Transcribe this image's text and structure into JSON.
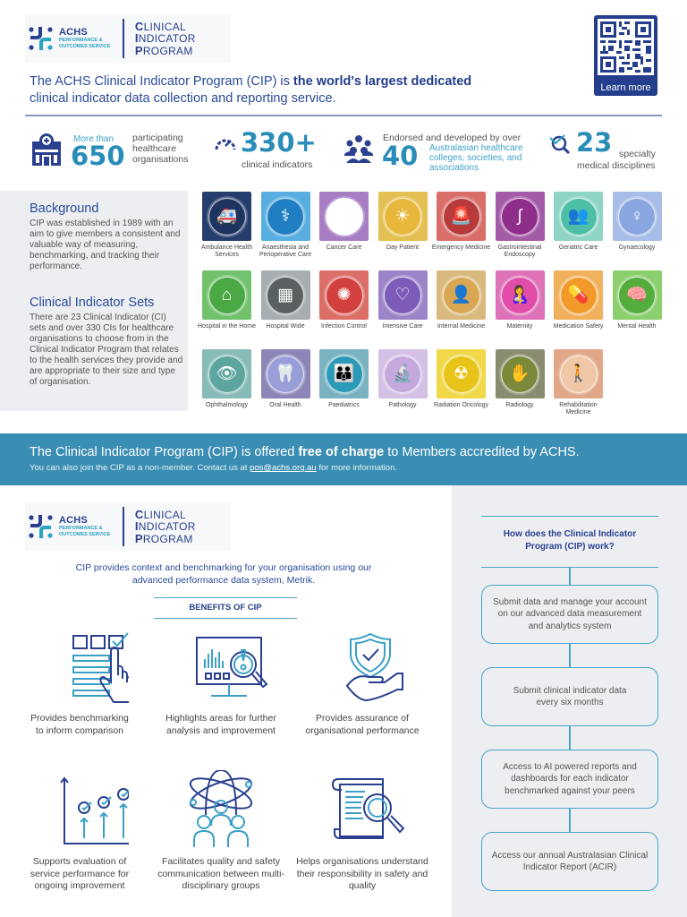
{
  "header": {
    "logo": {
      "org_name": "ACHS",
      "org_sub_line1": "PERFORMANCE &",
      "org_sub_line2": "OUTCOMES SERVICE",
      "program_line1_initial": "C",
      "program_line1_rest": "LINICAL",
      "program_line2_initial": "I",
      "program_line2_rest": "NDICATOR",
      "program_line3_initial": "P",
      "program_line3_rest": "ROGRAM"
    },
    "intro_part1": "The ACHS Clinical Indicator Program (CIP) is ",
    "intro_bold": "the world's largest dedicated",
    "intro_part2": "clinical indicator data collection and reporting service.",
    "qr_label": "Learn more"
  },
  "stats": [
    {
      "prefix": "More than",
      "number": "650",
      "text": "participating healthcare organisations",
      "icon": "hospital-icon"
    },
    {
      "number": "330+",
      "text": "clinical indicators",
      "icon": "gauge-icon"
    },
    {
      "prefix": "Endorsed and developed by over",
      "number": "40",
      "text": "Australasian healthcare colleges, societies, and associations",
      "icon": "people-group-icon"
    },
    {
      "number": "23",
      "text_line1": "specialty",
      "text_line2": "medical disciplines",
      "icon": "magnifier-check-icon"
    }
  ],
  "background": {
    "heading": "Background",
    "body": "CIP was established in 1989 with an aim to give members a consistent and valuable way of measuring, benchmarking, and tracking their performance.",
    "sets_heading": "Clinical Indicator Sets",
    "sets_body": "There are 23 Clinical Indicator (CI) sets and over 330 CIs for healthcare organisations to choose from in the Clinical Indicator Program that relates to the health services they provide and are appropriate to their size and type of organisation."
  },
  "indicator_sets": [
    {
      "label": "Ambulance Health Services",
      "color": "#253e6e",
      "ring": "#1e3460",
      "glyph": "🚑"
    },
    {
      "label": "Anaesthesia and Perioperative Care",
      "color": "#58aee0",
      "ring": "#1f7fc2",
      "glyph": "⚕"
    },
    {
      "label": "Cancer Care",
      "color": "#a77ec4",
      "ring": "#ffffff",
      "glyph": "🎗"
    },
    {
      "label": "Day Patient",
      "color": "#e4c052",
      "ring": "#e8b83c",
      "glyph": "☀"
    },
    {
      "label": "Emergency Medicine",
      "color": "#d96e68",
      "ring": "#b73b3b",
      "glyph": "🚨"
    },
    {
      "label": "Gastrointestinal Endoscopy",
      "color": "#a45ba7",
      "ring": "#8f2d8a",
      "glyph": "∫"
    },
    {
      "label": "Geriatric Care",
      "color": "#8fd4c4",
      "ring": "#4cbfa6",
      "glyph": "👥"
    },
    {
      "label": "Gynaecology",
      "color": "#a8bce8",
      "ring": "#8aa6e0",
      "glyph": "♀"
    },
    {
      "label": "Hospital in the Home",
      "color": "#72c16c",
      "ring": "#4aa845",
      "glyph": "⌂"
    },
    {
      "label": "Hospital Wide",
      "color": "#a7adb1",
      "ring": "#5a5f62",
      "glyph": "▦"
    },
    {
      "label": "Infection Control",
      "color": "#dc6e68",
      "ring": "#d2413d",
      "glyph": "✺"
    },
    {
      "label": "Intensive Care",
      "color": "#9d84c9",
      "ring": "#7c5cb8",
      "glyph": "♡"
    },
    {
      "label": "Internal Medicine",
      "color": "#d9b97e",
      "ring": "#d9a751",
      "glyph": "👤"
    },
    {
      "label": "Maternity",
      "color": "#dd72b8",
      "ring": "#e04ca7",
      "glyph": "🤱"
    },
    {
      "label": "Medication Safety",
      "color": "#f0b05c",
      "ring": "#f19a2a",
      "glyph": "💊"
    },
    {
      "label": "Mental Health",
      "color": "#8ccf6e",
      "ring": "#52ad3c",
      "glyph": "🧠"
    },
    {
      "label": "Ophthalmology",
      "color": "#86bbb8",
      "ring": "#5ea5a0",
      "glyph": "👁"
    },
    {
      "label": "Oral Health",
      "color": "#8c86b8",
      "ring": "#9a9ed8",
      "glyph": "🦷"
    },
    {
      "label": "Paediatrics",
      "color": "#7ab2c2",
      "ring": "#2b9ab8",
      "glyph": "👪"
    },
    {
      "label": "Pathology",
      "color": "#d4c0e4",
      "ring": "#c4a8de",
      "glyph": "🔬"
    },
    {
      "label": "Radiation Oncology",
      "color": "#f0d848",
      "ring": "#e8c418",
      "glyph": "☢"
    },
    {
      "label": "Radiology",
      "color": "#8a8c70",
      "ring": "#7a8a3a",
      "glyph": "✋"
    },
    {
      "label": "Rehabilitation Medicine",
      "color": "#e0a888",
      "ring": "#f0c8a8",
      "glyph": "🚶"
    }
  ],
  "banner": {
    "line1_part1": "The Clinical Indicator Program (CIP) is offered ",
    "line1_bold": "free of charge",
    "line1_part2": " to Members accredited by ACHS.",
    "line2_part1": "You can also join the CIP as a non-member. Contact us at ",
    "line2_link": "pos@achs.org.au",
    "line2_part2": " for more information."
  },
  "benefits": {
    "intro": "CIP provides context and benchmarking for your organisation using our advanced performance data system, Metrik.",
    "title": "BENEFITS OF CIP",
    "items": [
      {
        "text": "Provides benchmarking to inform comparison",
        "icon": "checklist-hand-icon"
      },
      {
        "text": "Highlights areas for further analysis and improvement",
        "icon": "monitor-magnifier-icon"
      },
      {
        "text": "Provides assurance of organisational performance",
        "icon": "shield-hand-icon"
      },
      {
        "text": "Supports evaluation of service performance for ongoing improvement",
        "icon": "growth-chart-icon"
      },
      {
        "text": "Facilitates quality and safety communication between multi-disciplinary groups",
        "icon": "team-orbit-icon"
      },
      {
        "text": "Helps organisations understand their responsibility in safety and quality",
        "icon": "document-magnifier-icon"
      }
    ]
  },
  "how_it_works": {
    "title": "How does the Clinical Indicator Program (CIP) work?",
    "steps": [
      "Submit data and manage your account on our advanced data measurement and analytics system",
      "Submit clinical indicator data every six months",
      "Access to AI powered reports and dashboards for each indicator benchmarked against your peers",
      "Access our annual Australasian Clinical Indicator Report (ACIR)"
    ]
  },
  "colors": {
    "navy": "#243d8c",
    "teal": "#3a8db3",
    "accent_blue": "#2a8db8",
    "panel_gray": "#eceef1"
  }
}
